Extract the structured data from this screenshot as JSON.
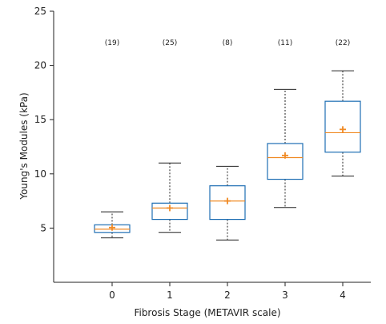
{
  "chart_data": {
    "type": "box",
    "xlabel": "Fibrosis Stage (METAVIR scale)",
    "ylabel": "Young's Modules (kPa)",
    "ylim": [
      0,
      25
    ],
    "yticks": [
      5,
      10,
      15,
      20,
      25
    ],
    "grid": false,
    "categories": [
      "0",
      "1",
      "2",
      "3",
      "4"
    ],
    "counts": [
      "(19)",
      "(25)",
      "(8)",
      "(11)",
      "(22)"
    ],
    "box_color": "#1f6fb4",
    "median_color": "#f08a24",
    "mean_marker": "+",
    "boxes": [
      {
        "whisker_low": 4.1,
        "q1": 4.6,
        "median": 4.9,
        "mean": 5.05,
        "q3": 5.3,
        "whisker_high": 6.5
      },
      {
        "whisker_low": 4.6,
        "q1": 5.8,
        "median": 6.85,
        "mean": 6.85,
        "q3": 7.3,
        "whisker_high": 11.0
      },
      {
        "whisker_low": 3.9,
        "q1": 5.8,
        "median": 7.5,
        "mean": 7.5,
        "q3": 8.9,
        "whisker_high": 10.7
      },
      {
        "whisker_low": 6.9,
        "q1": 9.5,
        "median": 11.5,
        "mean": 11.7,
        "q3": 12.8,
        "whisker_high": 17.8
      },
      {
        "whisker_low": 9.8,
        "q1": 12.0,
        "median": 13.8,
        "mean": 14.1,
        "q3": 16.7,
        "whisker_high": 19.5
      }
    ]
  }
}
